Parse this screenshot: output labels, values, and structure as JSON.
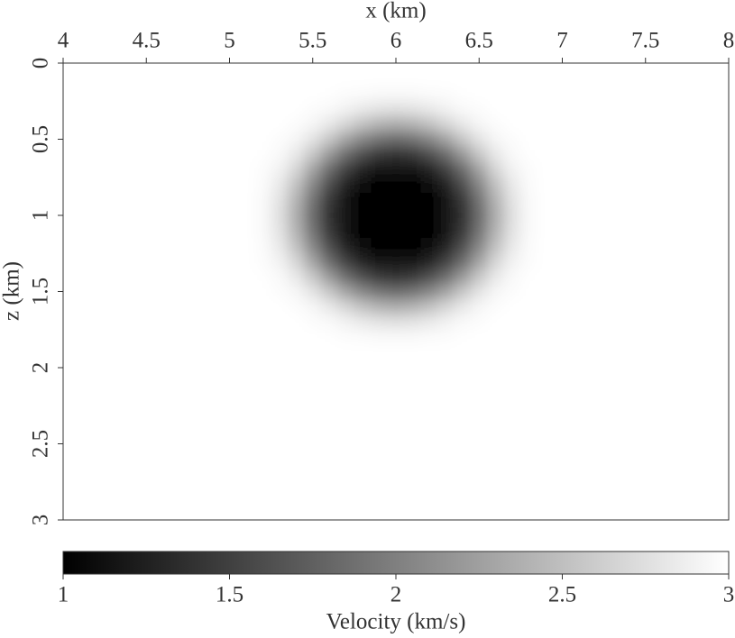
{
  "chart_data": {
    "type": "heatmap",
    "xlabel": "x (km)",
    "ylabel": "z (km)",
    "x": [
      4,
      4.1,
      4.2,
      4.3,
      4.4,
      4.5,
      4.6,
      4.7,
      4.8,
      4.9,
      5,
      5.1,
      5.2,
      5.3,
      5.4,
      5.5,
      5.6,
      5.7,
      5.8,
      5.9,
      6,
      6.1,
      6.2,
      6.3,
      6.4,
      6.5,
      6.6,
      6.7,
      6.8,
      6.9,
      7,
      7.1,
      7.2,
      7.3,
      7.4,
      7.5,
      7.6,
      7.7,
      7.8,
      7.9,
      8
    ],
    "y": [
      0,
      0.1,
      0.2,
      0.3,
      0.4,
      0.5,
      0.6,
      0.7,
      0.8,
      0.9,
      1,
      1.1,
      1.2,
      1.3,
      1.4,
      1.5,
      1.6,
      1.7,
      1.8,
      1.9,
      2,
      2.1,
      2.2,
      2.3,
      2.4,
      2.5,
      2.6,
      2.7,
      2.8,
      2.9,
      3
    ],
    "xlim": [
      4,
      8
    ],
    "ylim": [
      0,
      3
    ],
    "y_inverted": true,
    "xticks": [
      4,
      4.5,
      5,
      5.5,
      6,
      6.5,
      7,
      7.5,
      8
    ],
    "yticks": [
      0,
      0.5,
      1,
      1.5,
      2,
      2.5,
      3
    ],
    "colormap": [
      "#000000",
      "#ffffff"
    ],
    "colorbar": {
      "label": "Velocity (km/s)",
      "lim": [
        1,
        3
      ],
      "ticks": [
        1,
        1.5,
        2,
        2.5,
        3
      ]
    },
    "values": [
      [
        3,
        3,
        3,
        3,
        3,
        3,
        3,
        3,
        3,
        3,
        3,
        3,
        3,
        3,
        3,
        3,
        3,
        3,
        3,
        3,
        3,
        3,
        3,
        3,
        3,
        3,
        3,
        3,
        3,
        3,
        3,
        3,
        3,
        3,
        3,
        3,
        3,
        3,
        3,
        3,
        3
      ],
      [
        3,
        3,
        3,
        3,
        3,
        3,
        3,
        3,
        3,
        3,
        3,
        3,
        3,
        3,
        3,
        3,
        3,
        3,
        3,
        3,
        3,
        3,
        3,
        3,
        3,
        3,
        3,
        3,
        3,
        3,
        3,
        3,
        3,
        3,
        3,
        3,
        3,
        3,
        3,
        3,
        3
      ],
      [
        3,
        3,
        3,
        3,
        3,
        3,
        3,
        3,
        3,
        3,
        3,
        3,
        3,
        3,
        3,
        3,
        2.99,
        2.98,
        2.97,
        2.95,
        2.95,
        2.95,
        2.97,
        2.98,
        2.99,
        3,
        3,
        3,
        3,
        3,
        3,
        3,
        3,
        3,
        3,
        3,
        3,
        3,
        3,
        3,
        3
      ],
      [
        3,
        3,
        3,
        3,
        3,
        3,
        3,
        3,
        3,
        3,
        3,
        3,
        3,
        3,
        3,
        2.98,
        2.95,
        2.9,
        2.83,
        2.78,
        2.76,
        2.78,
        2.83,
        2.9,
        2.95,
        2.98,
        3,
        3,
        3,
        3,
        3,
        3,
        3,
        3,
        3,
        3,
        3,
        3,
        3,
        3,
        3
      ],
      [
        3,
        3,
        3,
        3,
        3,
        3,
        3,
        3,
        3,
        3,
        3,
        3,
        3,
        3,
        2.98,
        2.93,
        2.82,
        2.67,
        2.51,
        2.4,
        2.36,
        2.4,
        2.51,
        2.67,
        2.82,
        2.93,
        2.98,
        3,
        3,
        3,
        3,
        3,
        3,
        3,
        3,
        3,
        3,
        3,
        3,
        3,
        3
      ],
      [
        3,
        3,
        3,
        3,
        3,
        3,
        3,
        3,
        3,
        3,
        3,
        3,
        3,
        2.98,
        2.93,
        2.78,
        2.55,
        2.28,
        2.05,
        1.9,
        1.85,
        1.9,
        2.05,
        2.28,
        2.55,
        2.78,
        2.93,
        2.98,
        3,
        3,
        3,
        3,
        3,
        3,
        3,
        3,
        3,
        3,
        3,
        3,
        3
      ],
      [
        3,
        3,
        3,
        3,
        3,
        3,
        3,
        3,
        3,
        3,
        3,
        3,
        2.99,
        2.95,
        2.82,
        2.55,
        2.19,
        1.85,
        1.6,
        1.45,
        1.4,
        1.45,
        1.6,
        1.85,
        2.19,
        2.55,
        2.82,
        2.95,
        2.99,
        3,
        3,
        3,
        3,
        3,
        3,
        3,
        3,
        3,
        3,
        3,
        3
      ],
      [
        3,
        3,
        3,
        3,
        3,
        3,
        3,
        3,
        3,
        3,
        3,
        3,
        2.98,
        2.9,
        2.67,
        2.28,
        1.85,
        1.5,
        1.28,
        1.17,
        1.14,
        1.17,
        1.28,
        1.5,
        1.85,
        2.28,
        2.67,
        2.9,
        2.98,
        3,
        3,
        3,
        3,
        3,
        3,
        3,
        3,
        3,
        3,
        3,
        3
      ],
      [
        3,
        3,
        3,
        3,
        3,
        3,
        3,
        3,
        3,
        3,
        3,
        3,
        2.97,
        2.83,
        2.51,
        2.05,
        1.6,
        1.28,
        1.11,
        1.04,
        1.03,
        1.04,
        1.11,
        1.28,
        1.6,
        2.05,
        2.51,
        2.83,
        2.97,
        3,
        3,
        3,
        3,
        3,
        3,
        3,
        3,
        3,
        3,
        3,
        3
      ],
      [
        3,
        3,
        3,
        3,
        3,
        3,
        3,
        3,
        3,
        3,
        3,
        3,
        2.95,
        2.78,
        2.4,
        1.9,
        1.45,
        1.17,
        1.04,
        1.01,
        1,
        1.01,
        1.04,
        1.17,
        1.45,
        1.9,
        2.4,
        2.78,
        2.95,
        3,
        3,
        3,
        3,
        3,
        3,
        3,
        3,
        3,
        3,
        3,
        3
      ],
      [
        3,
        3,
        3,
        3,
        3,
        3,
        3,
        3,
        3,
        3,
        3,
        3,
        2.95,
        2.76,
        2.36,
        1.85,
        1.4,
        1.14,
        1.03,
        1,
        1,
        1,
        1.03,
        1.14,
        1.4,
        1.85,
        2.36,
        2.76,
        2.95,
        3,
        3,
        3,
        3,
        3,
        3,
        3,
        3,
        3,
        3,
        3,
        3
      ],
      [
        3,
        3,
        3,
        3,
        3,
        3,
        3,
        3,
        3,
        3,
        3,
        3,
        2.95,
        2.78,
        2.4,
        1.9,
        1.45,
        1.17,
        1.04,
        1.01,
        1,
        1.01,
        1.04,
        1.17,
        1.45,
        1.9,
        2.4,
        2.78,
        2.95,
        3,
        3,
        3,
        3,
        3,
        3,
        3,
        3,
        3,
        3,
        3,
        3
      ],
      [
        3,
        3,
        3,
        3,
        3,
        3,
        3,
        3,
        3,
        3,
        3,
        3,
        2.97,
        2.83,
        2.51,
        2.05,
        1.6,
        1.28,
        1.11,
        1.04,
        1.03,
        1.04,
        1.11,
        1.28,
        1.6,
        2.05,
        2.51,
        2.83,
        2.97,
        3,
        3,
        3,
        3,
        3,
        3,
        3,
        3,
        3,
        3,
        3,
        3
      ],
      [
        3,
        3,
        3,
        3,
        3,
        3,
        3,
        3,
        3,
        3,
        3,
        3,
        2.98,
        2.9,
        2.67,
        2.28,
        1.85,
        1.5,
        1.28,
        1.17,
        1.14,
        1.17,
        1.28,
        1.5,
        1.85,
        2.28,
        2.67,
        2.9,
        2.98,
        3,
        3,
        3,
        3,
        3,
        3,
        3,
        3,
        3,
        3,
        3,
        3
      ],
      [
        3,
        3,
        3,
        3,
        3,
        3,
        3,
        3,
        3,
        3,
        3,
        3,
        2.99,
        2.95,
        2.82,
        2.55,
        2.19,
        1.85,
        1.6,
        1.45,
        1.4,
        1.45,
        1.6,
        1.85,
        2.19,
        2.55,
        2.82,
        2.95,
        2.99,
        3,
        3,
        3,
        3,
        3,
        3,
        3,
        3,
        3,
        3,
        3,
        3
      ],
      [
        3,
        3,
        3,
        3,
        3,
        3,
        3,
        3,
        3,
        3,
        3,
        3,
        3,
        2.98,
        2.93,
        2.78,
        2.55,
        2.28,
        2.05,
        1.9,
        1.85,
        1.9,
        2.05,
        2.28,
        2.55,
        2.78,
        2.93,
        2.98,
        3,
        3,
        3,
        3,
        3,
        3,
        3,
        3,
        3,
        3,
        3,
        3,
        3
      ],
      [
        3,
        3,
        3,
        3,
        3,
        3,
        3,
        3,
        3,
        3,
        3,
        3,
        3,
        3,
        2.98,
        2.93,
        2.82,
        2.67,
        2.51,
        2.4,
        2.36,
        2.4,
        2.51,
        2.67,
        2.82,
        2.93,
        2.98,
        3,
        3,
        3,
        3,
        3,
        3,
        3,
        3,
        3,
        3,
        3,
        3,
        3,
        3
      ],
      [
        3,
        3,
        3,
        3,
        3,
        3,
        3,
        3,
        3,
        3,
        3,
        3,
        3,
        3,
        3,
        2.98,
        2.95,
        2.9,
        2.83,
        2.78,
        2.76,
        2.78,
        2.83,
        2.9,
        2.95,
        2.98,
        3,
        3,
        3,
        3,
        3,
        3,
        3,
        3,
        3,
        3,
        3,
        3,
        3,
        3,
        3
      ],
      [
        3,
        3,
        3,
        3,
        3,
        3,
        3,
        3,
        3,
        3,
        3,
        3,
        3,
        3,
        3,
        3,
        2.99,
        2.98,
        2.97,
        2.95,
        2.95,
        2.95,
        2.97,
        2.98,
        2.99,
        3,
        3,
        3,
        3,
        3,
        3,
        3,
        3,
        3,
        3,
        3,
        3,
        3,
        3,
        3,
        3
      ],
      [
        3,
        3,
        3,
        3,
        3,
        3,
        3,
        3,
        3,
        3,
        3,
        3,
        3,
        3,
        3,
        3,
        3,
        3,
        3,
        3,
        3,
        3,
        3,
        3,
        3,
        3,
        3,
        3,
        3,
        3,
        3,
        3,
        3,
        3,
        3,
        3,
        3,
        3,
        3,
        3,
        3
      ],
      [
        3,
        3,
        3,
        3,
        3,
        3,
        3,
        3,
        3,
        3,
        3,
        3,
        3,
        3,
        3,
        3,
        3,
        3,
        3,
        3,
        3,
        3,
        3,
        3,
        3,
        3,
        3,
        3,
        3,
        3,
        3,
        3,
        3,
        3,
        3,
        3,
        3,
        3,
        3,
        3,
        3
      ],
      [
        3,
        3,
        3,
        3,
        3,
        3,
        3,
        3,
        3,
        3,
        3,
        3,
        3,
        3,
        3,
        3,
        3,
        3,
        3,
        3,
        3,
        3,
        3,
        3,
        3,
        3,
        3,
        3,
        3,
        3,
        3,
        3,
        3,
        3,
        3,
        3,
        3,
        3,
        3,
        3,
        3
      ],
      [
        3,
        3,
        3,
        3,
        3,
        3,
        3,
        3,
        3,
        3,
        3,
        3,
        3,
        3,
        3,
        3,
        3,
        3,
        3,
        3,
        3,
        3,
        3,
        3,
        3,
        3,
        3,
        3,
        3,
        3,
        3,
        3,
        3,
        3,
        3,
        3,
        3,
        3,
        3,
        3,
        3
      ],
      [
        3,
        3,
        3,
        3,
        3,
        3,
        3,
        3,
        3,
        3,
        3,
        3,
        3,
        3,
        3,
        3,
        3,
        3,
        3,
        3,
        3,
        3,
        3,
        3,
        3,
        3,
        3,
        3,
        3,
        3,
        3,
        3,
        3,
        3,
        3,
        3,
        3,
        3,
        3,
        3,
        3
      ],
      [
        3,
        3,
        3,
        3,
        3,
        3,
        3,
        3,
        3,
        3,
        3,
        3,
        3,
        3,
        3,
        3,
        3,
        3,
        3,
        3,
        3,
        3,
        3,
        3,
        3,
        3,
        3,
        3,
        3,
        3,
        3,
        3,
        3,
        3,
        3,
        3,
        3,
        3,
        3,
        3,
        3
      ],
      [
        3,
        3,
        3,
        3,
        3,
        3,
        3,
        3,
        3,
        3,
        3,
        3,
        3,
        3,
        3,
        3,
        3,
        3,
        3,
        3,
        3,
        3,
        3,
        3,
        3,
        3,
        3,
        3,
        3,
        3,
        3,
        3,
        3,
        3,
        3,
        3,
        3,
        3,
        3,
        3,
        3
      ],
      [
        3,
        3,
        3,
        3,
        3,
        3,
        3,
        3,
        3,
        3,
        3,
        3,
        3,
        3,
        3,
        3,
        3,
        3,
        3,
        3,
        3,
        3,
        3,
        3,
        3,
        3,
        3,
        3,
        3,
        3,
        3,
        3,
        3,
        3,
        3,
        3,
        3,
        3,
        3,
        3,
        3
      ],
      [
        3,
        3,
        3,
        3,
        3,
        3,
        3,
        3,
        3,
        3,
        3,
        3,
        3,
        3,
        3,
        3,
        3,
        3,
        3,
        3,
        3,
        3,
        3,
        3,
        3,
        3,
        3,
        3,
        3,
        3,
        3,
        3,
        3,
        3,
        3,
        3,
        3,
        3,
        3,
        3,
        3
      ],
      [
        3,
        3,
        3,
        3,
        3,
        3,
        3,
        3,
        3,
        3,
        3,
        3,
        3,
        3,
        3,
        3,
        3,
        3,
        3,
        3,
        3,
        3,
        3,
        3,
        3,
        3,
        3,
        3,
        3,
        3,
        3,
        3,
        3,
        3,
        3,
        3,
        3,
        3,
        3,
        3,
        3
      ],
      [
        3,
        3,
        3,
        3,
        3,
        3,
        3,
        3,
        3,
        3,
        3,
        3,
        3,
        3,
        3,
        3,
        3,
        3,
        3,
        3,
        3,
        3,
        3,
        3,
        3,
        3,
        3,
        3,
        3,
        3,
        3,
        3,
        3,
        3,
        3,
        3,
        3,
        3,
        3,
        3,
        3
      ],
      [
        3,
        3,
        3,
        3,
        3,
        3,
        3,
        3,
        3,
        3,
        3,
        3,
        3,
        3,
        3,
        3,
        3,
        3,
        3,
        3,
        3,
        3,
        3,
        3,
        3,
        3,
        3,
        3,
        3,
        3,
        3,
        3,
        3,
        3,
        3,
        3,
        3,
        3,
        3,
        3,
        3
      ]
    ]
  }
}
